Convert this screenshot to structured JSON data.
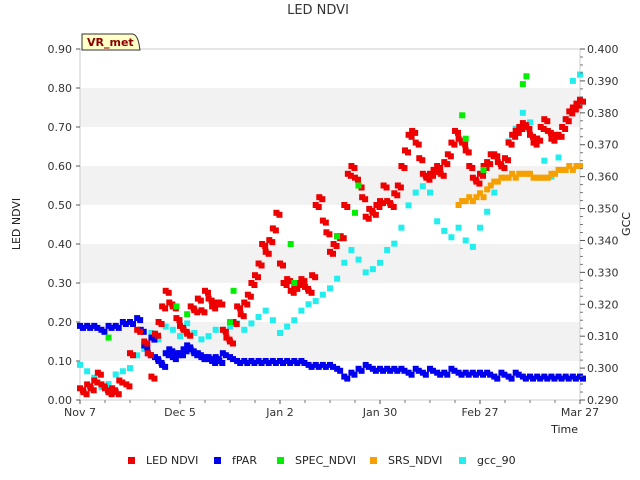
{
  "chart_data": {
    "type": "scatter",
    "title": "LED NDVI",
    "site_label": "VR_met",
    "xlabel": "Time",
    "ylabel_left": "LED NDVI",
    "ylabel_right": "GCC",
    "x_range_days": [
      0,
      140
    ],
    "x_ticks": [
      {
        "label": "Nov 7",
        "day": 0
      },
      {
        "label": "Dec 5",
        "day": 28
      },
      {
        "label": "Jan 2",
        "day": 56
      },
      {
        "label": "Jan 30",
        "day": 84
      },
      {
        "label": "Feb 27",
        "day": 112
      },
      {
        "label": "Mar 27",
        "day": 140
      }
    ],
    "ylim_left": [
      0,
      0.9
    ],
    "yticks_left": [
      "0.00",
      "0.10",
      "0.20",
      "0.30",
      "0.40",
      "0.50",
      "0.60",
      "0.70",
      "0.80",
      "0.90"
    ],
    "ylim_right": [
      0.29,
      0.4
    ],
    "yticks_right": [
      "0.290",
      "0.300",
      "0.310",
      "0.320",
      "0.330",
      "0.340",
      "0.350",
      "0.360",
      "0.370",
      "0.380",
      "0.390",
      "0.400"
    ],
    "series": [
      {
        "name": "LED NDVI",
        "color": "#ee0000",
        "axis": "left",
        "x": [
          0,
          1,
          2,
          3,
          4,
          5,
          6,
          7,
          8,
          9,
          10,
          11,
          13,
          14,
          16,
          18,
          19,
          20,
          21,
          22,
          23,
          24,
          25,
          26,
          27,
          28,
          29,
          30,
          31,
          32,
          33,
          34,
          35,
          36,
          37,
          38,
          39,
          40,
          41,
          42,
          43,
          44,
          45,
          46,
          47,
          48,
          49,
          50,
          51,
          52,
          53,
          54,
          55,
          56,
          57,
          58,
          59,
          60,
          61,
          62,
          63,
          64,
          65,
          66,
          67,
          68,
          69,
          70,
          71,
          72,
          73,
          74,
          75,
          76,
          77,
          78,
          79,
          80,
          81,
          82,
          83,
          84,
          85,
          86,
          87,
          88,
          89,
          90,
          91,
          92,
          93,
          94,
          95,
          96,
          97,
          98,
          99,
          100,
          101,
          102,
          103,
          104,
          105,
          106,
          107,
          108,
          109,
          110,
          111,
          112,
          113,
          114,
          115,
          116,
          117,
          118,
          119,
          120,
          121,
          122,
          123,
          124,
          125,
          126,
          127,
          128,
          129,
          130,
          131,
          132,
          133,
          134,
          135,
          136,
          137,
          138,
          139,
          140
        ],
        "values": [
          0.03,
          0.02,
          0.04,
          0.03,
          0.05,
          0.07,
          0.04,
          0.03,
          0.02,
          0.03,
          0.02,
          0.05,
          0.04,
          0.12,
          0.18,
          0.15,
          0.12,
          0.06,
          0.17,
          0.2,
          0.24,
          0.28,
          0.25,
          0.24,
          0.21,
          0.19,
          0.18,
          0.17,
          0.24,
          0.23,
          0.26,
          0.23,
          0.28,
          0.26,
          0.24,
          0.25,
          0.25,
          0.18,
          0.16,
          0.15,
          0.2,
          0.24,
          0.22,
          0.25,
          0.27,
          0.3,
          0.32,
          0.35,
          0.4,
          0.38,
          0.41,
          0.44,
          0.48,
          0.35,
          0.3,
          0.31,
          0.28,
          0.29,
          0.3,
          0.31,
          0.29,
          0.28,
          0.32,
          0.5,
          0.52,
          0.46,
          0.43,
          0.38,
          0.4,
          0.42,
          0.42,
          0.5,
          0.58,
          0.6,
          0.57,
          0.55,
          0.52,
          0.47,
          0.49,
          0.48,
          0.5,
          0.51,
          0.55,
          0.51,
          0.5,
          0.53,
          0.55,
          0.6,
          0.64,
          0.68,
          0.69,
          0.66,
          0.62,
          0.58,
          0.57,
          0.58,
          0.59,
          0.6,
          0.58,
          0.61,
          0.63,
          0.66,
          0.69,
          0.67,
          0.66,
          0.64,
          0.6,
          0.57,
          0.56,
          0.58,
          0.6,
          0.61,
          0.63,
          0.63,
          0.61,
          0.6,
          0.62,
          0.66,
          0.68,
          0.69,
          0.7,
          0.71,
          0.7,
          0.68,
          0.66,
          0.67,
          0.7,
          0.72,
          0.69,
          0.67,
          0.68,
          0.68,
          0.7,
          0.72,
          0.74,
          0.75,
          0.76,
          0.77
        ]
      },
      {
        "name": "fPAR",
        "color": "#0000ee",
        "axis": "left",
        "x": [
          0,
          2,
          4,
          6,
          8,
          10,
          12,
          14,
          16,
          17,
          18,
          19,
          20,
          21,
          22,
          23,
          24,
          25,
          26,
          27,
          28,
          29,
          30,
          31,
          32,
          33,
          34,
          35,
          36,
          37,
          38,
          39,
          40,
          42,
          44,
          46,
          48,
          50,
          52,
          54,
          56,
          58,
          60,
          62,
          64,
          66,
          68,
          70,
          72,
          74,
          76,
          78,
          80,
          82,
          84,
          86,
          88,
          90,
          92,
          94,
          96,
          98,
          100,
          102,
          104,
          106,
          108,
          110,
          112,
          114,
          116,
          118,
          120,
          122,
          124,
          126,
          128,
          130,
          132,
          134,
          136,
          138,
          140
        ],
        "values": [
          0.19,
          0.19,
          0.19,
          0.18,
          0.19,
          0.19,
          0.2,
          0.2,
          0.21,
          0.18,
          0.14,
          0.12,
          0.16,
          0.11,
          0.1,
          0.09,
          0.12,
          0.13,
          0.11,
          0.12,
          0.12,
          0.13,
          0.14,
          0.13,
          0.12,
          0.12,
          0.11,
          0.11,
          0.11,
          0.1,
          0.11,
          0.1,
          0.12,
          0.11,
          0.1,
          0.1,
          0.1,
          0.1,
          0.1,
          0.1,
          0.1,
          0.1,
          0.1,
          0.1,
          0.09,
          0.09,
          0.09,
          0.09,
          0.08,
          0.06,
          0.07,
          0.08,
          0.09,
          0.08,
          0.08,
          0.08,
          0.08,
          0.08,
          0.07,
          0.08,
          0.07,
          0.08,
          0.07,
          0.07,
          0.08,
          0.07,
          0.07,
          0.07,
          0.07,
          0.07,
          0.06,
          0.07,
          0.06,
          0.07,
          0.06,
          0.06,
          0.06,
          0.06,
          0.06,
          0.06,
          0.06,
          0.06,
          0.06
        ]
      },
      {
        "name": "SPEC_NDVI",
        "color": "#00ee00",
        "axis": "left",
        "x": [
          8,
          27,
          30,
          42,
          43,
          59,
          60,
          72,
          77,
          78,
          107,
          108,
          113,
          124,
          125
        ],
        "values": [
          0.16,
          0.24,
          0.22,
          0.2,
          0.28,
          0.4,
          0.3,
          0.42,
          0.48,
          0.55,
          0.73,
          0.67,
          0.59,
          0.81,
          0.83
        ],
        "y_min": [
          0.0,
          0.0
        ]
      },
      {
        "name": "SRS_NDVI",
        "color": "#f5a000",
        "axis": "left",
        "x": [
          106,
          107,
          108,
          109,
          110,
          111,
          112,
          113,
          114,
          115,
          116,
          117,
          118,
          119,
          120,
          121,
          122,
          123,
          124,
          125,
          126,
          127,
          128,
          129,
          130,
          131,
          132,
          133,
          134,
          135,
          136,
          137,
          138,
          139,
          140
        ],
        "values": [
          0.5,
          0.51,
          0.51,
          0.52,
          0.51,
          0.52,
          0.53,
          0.52,
          0.54,
          0.55,
          0.56,
          0.56,
          0.57,
          0.57,
          0.57,
          0.58,
          0.57,
          0.58,
          0.58,
          0.58,
          0.58,
          0.57,
          0.57,
          0.57,
          0.57,
          0.57,
          0.58,
          0.58,
          0.59,
          0.59,
          0.59,
          0.6,
          0.59,
          0.6,
          0.6
        ]
      },
      {
        "name": "gcc_90",
        "color": "#22eeee",
        "axis": "right",
        "x": [
          0,
          2,
          4,
          6,
          8,
          10,
          12,
          14,
          16,
          18,
          20,
          22,
          24,
          26,
          28,
          30,
          32,
          34,
          36,
          38,
          40,
          42,
          44,
          46,
          48,
          50,
          52,
          54,
          56,
          58,
          60,
          62,
          64,
          66,
          68,
          70,
          72,
          74,
          76,
          78,
          80,
          82,
          84,
          86,
          88,
          90,
          92,
          94,
          96,
          98,
          100,
          102,
          104,
          106,
          108,
          110,
          112,
          114,
          116,
          118,
          120,
          122,
          124,
          126,
          128,
          130,
          132,
          134,
          136,
          138,
          140
        ],
        "values": [
          0.301,
          0.299,
          0.297,
          0.294,
          0.295,
          0.298,
          0.299,
          0.3,
          0.304,
          0.306,
          0.311,
          0.309,
          0.313,
          0.312,
          0.31,
          0.314,
          0.311,
          0.309,
          0.31,
          0.312,
          0.312,
          0.313,
          0.314,
          0.312,
          0.314,
          0.316,
          0.318,
          0.315,
          0.311,
          0.313,
          0.315,
          0.318,
          0.32,
          0.321,
          0.323,
          0.325,
          0.328,
          0.333,
          0.337,
          0.334,
          0.33,
          0.331,
          0.333,
          0.337,
          0.339,
          0.344,
          0.351,
          0.355,
          0.357,
          0.355,
          0.346,
          0.343,
          0.341,
          0.344,
          0.34,
          0.338,
          0.344,
          0.349,
          0.355,
          0.363,
          0.371,
          0.375,
          0.38,
          0.377,
          0.372,
          0.365,
          0.36,
          0.366,
          0.378,
          0.39,
          0.392
        ]
      }
    ],
    "legend": [
      "LED NDVI",
      "fPAR",
      "SPEC_NDVI",
      "SRS_NDVI",
      "gcc_90"
    ],
    "legend_position": "bottom-center",
    "grid": "horizontal-bands"
  }
}
